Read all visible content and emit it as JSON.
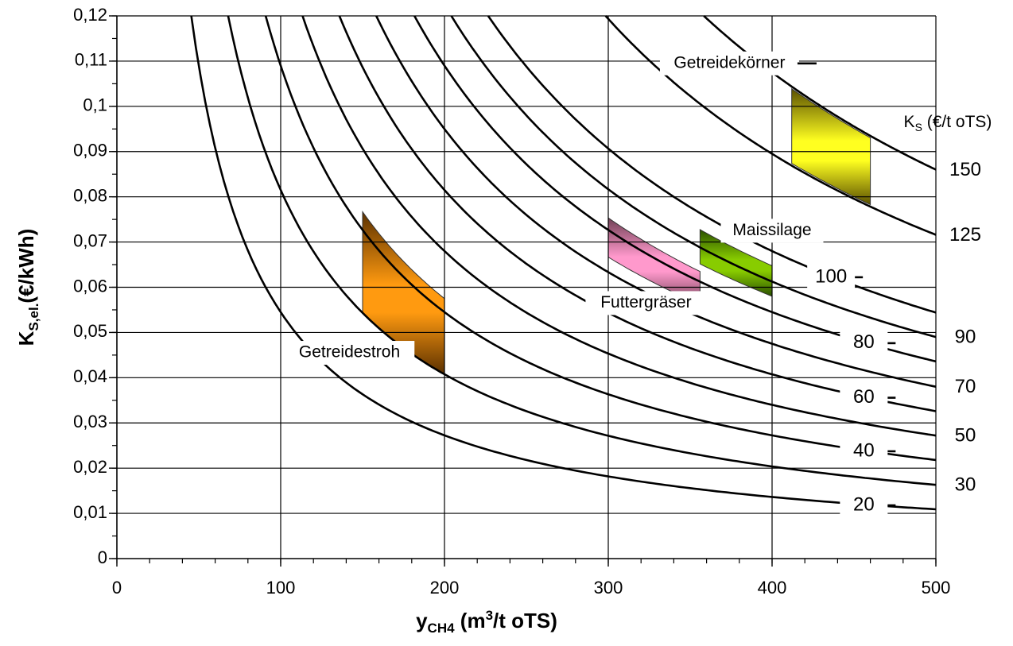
{
  "chart_data": {
    "type": "line",
    "title": "",
    "xlabel": {
      "base": "y",
      "sub": "CH4",
      "rest_a": " (m",
      "sup": "3",
      "rest_b": "/t oTS)"
    },
    "ylabel": {
      "base": "K",
      "sub": "S,el.",
      "rest": "(€/kWh)"
    },
    "xlim": [
      0,
      500
    ],
    "ylim": [
      0,
      0.12
    ],
    "x_ticks": [
      {
        "value": 0,
        "label": "0"
      },
      {
        "value": 100,
        "label": "100"
      },
      {
        "value": 200,
        "label": "200"
      },
      {
        "value": 300,
        "label": "300"
      },
      {
        "value": 400,
        "label": "400"
      },
      {
        "value": 500,
        "label": "500"
      }
    ],
    "y_ticks": [
      {
        "value": 0,
        "label": "0"
      },
      {
        "value": 0.01,
        "label": "0,01"
      },
      {
        "value": 0.02,
        "label": "0,02"
      },
      {
        "value": 0.03,
        "label": "0,03"
      },
      {
        "value": 0.04,
        "label": "0,04"
      },
      {
        "value": 0.05,
        "label": "0,05"
      },
      {
        "value": 0.06,
        "label": "0,06"
      },
      {
        "value": 0.07,
        "label": "0,07"
      },
      {
        "value": 0.08,
        "label": "0,08"
      },
      {
        "value": 0.09,
        "label": "0,09"
      },
      {
        "value": 0.1,
        "label": "0,1"
      },
      {
        "value": 0.11,
        "label": "0,11"
      },
      {
        "value": 0.12,
        "label": "0,12"
      }
    ],
    "grid": true,
    "curve_legend_title": {
      "base": "K",
      "sub": "S",
      "rest": " (€/t oTS)"
    },
    "series": [
      {
        "name": "20",
        "k": 5.45
      },
      {
        "name": "30",
        "k": 8.15
      },
      {
        "name": "40",
        "k": 10.9
      },
      {
        "name": "50",
        "k": 13.6
      },
      {
        "name": "60",
        "k": 16.3
      },
      {
        "name": "70",
        "k": 19.0
      },
      {
        "name": "80",
        "k": 21.8
      },
      {
        "name": "90",
        "k": 24.5
      },
      {
        "name": "100",
        "k": 27.2
      },
      {
        "name": "125",
        "k": 35.8
      },
      {
        "name": "150",
        "k": 43.0
      }
    ],
    "regions": [
      {
        "name": "Getreidestroh",
        "x": [
          150,
          200
        ],
        "k_range": [
          8.15,
          11.5
        ],
        "color_light": "#ff9a10",
        "color_dark": "#5a3000"
      },
      {
        "name": "Futtergräser",
        "x": [
          300,
          356
        ],
        "k_range": [
          20.0,
          22.6
        ],
        "color_light": "#ff99cc",
        "color_dark": "#704055"
      },
      {
        "name": "Maissilage",
        "x": [
          356,
          400
        ],
        "k_range": [
          23.2,
          25.9
        ],
        "color_light": "#88cc00",
        "color_dark": "#2a5000"
      },
      {
        "name": "Getreidekörner",
        "x": [
          412,
          460
        ],
        "k_range": [
          36.0,
          42.8
        ],
        "color_light": "#ffff20",
        "color_dark": "#5a5000"
      }
    ],
    "annotations": [
      {
        "name": "getreidekoerner",
        "text": "Getreidekörner",
        "x": 374,
        "y": 0.1095,
        "anchor": "middle"
      },
      {
        "name": "maissilage",
        "text": "Maissilage",
        "x": 400,
        "y": 0.0725,
        "anchor": "middle"
      },
      {
        "name": "futtergraeser",
        "text": "Futtergräser",
        "x": 323,
        "y": 0.0565,
        "anchor": "middle"
      },
      {
        "name": "getreidestroh",
        "text": "Getreidestroh",
        "x": 142,
        "y": 0.0455,
        "anchor": "middle"
      }
    ]
  }
}
